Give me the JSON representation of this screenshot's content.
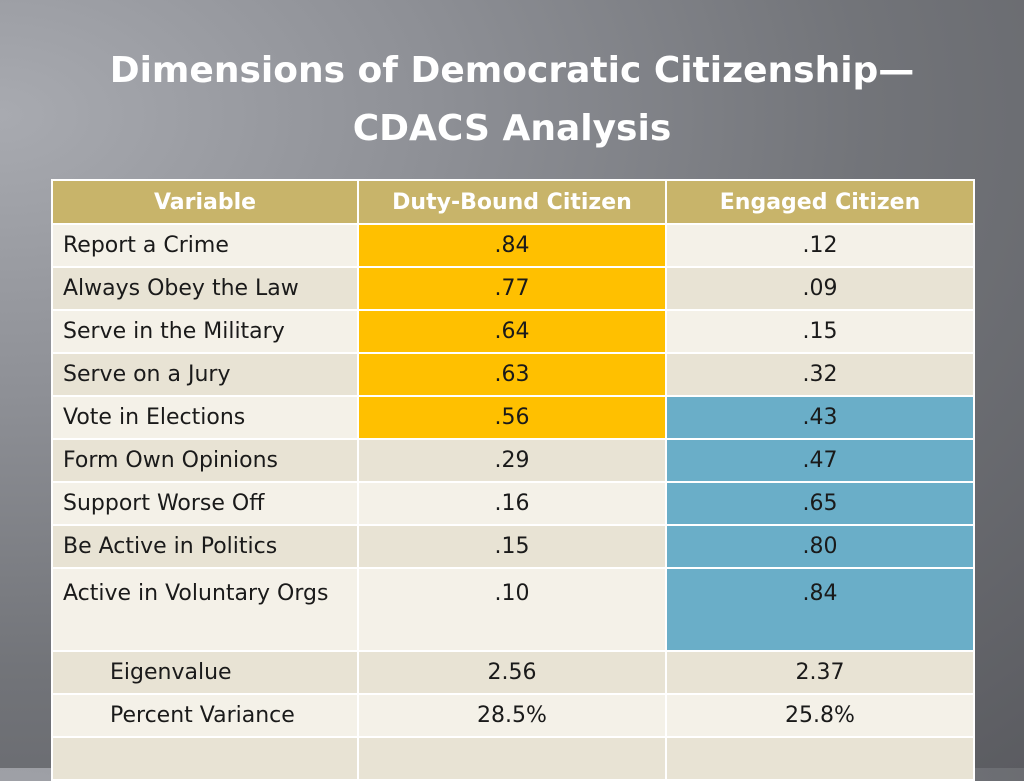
{
  "title": {
    "line1": "Dimensions of Democratic Citizenship—",
    "line2": "CDACS Analysis"
  },
  "table": {
    "headers": [
      "Variable",
      "Duty-Bound Citizen",
      "Engaged Citizen"
    ],
    "rows": [
      [
        "Report a Crime",
        ".84",
        ".12"
      ],
      [
        "Always Obey the Law",
        ".77",
        ".09"
      ],
      [
        "Serve in the Military",
        ".64",
        ".15"
      ],
      [
        "Serve on a Jury",
        ".63",
        ".32"
      ],
      [
        "Vote in Elections",
        ".56",
        ".43"
      ],
      [
        "Form Own Opinions",
        ".29",
        ".47"
      ],
      [
        "Support Worse Off",
        ".16",
        ".65"
      ],
      [
        "Be Active in Politics",
        ".15",
        ".80"
      ],
      [
        "Active in Voluntary Orgs",
        ".10",
        ".84"
      ],
      [
        "Eigenvalue",
        "2.56",
        "2.37"
      ],
      [
        "Percent Variance",
        "28.5%",
        "25.8%"
      ]
    ]
  },
  "colors": {
    "header": "#c8b46a",
    "duty_highlight": "#ffc000",
    "engaged_highlight": "#6aaec8"
  }
}
